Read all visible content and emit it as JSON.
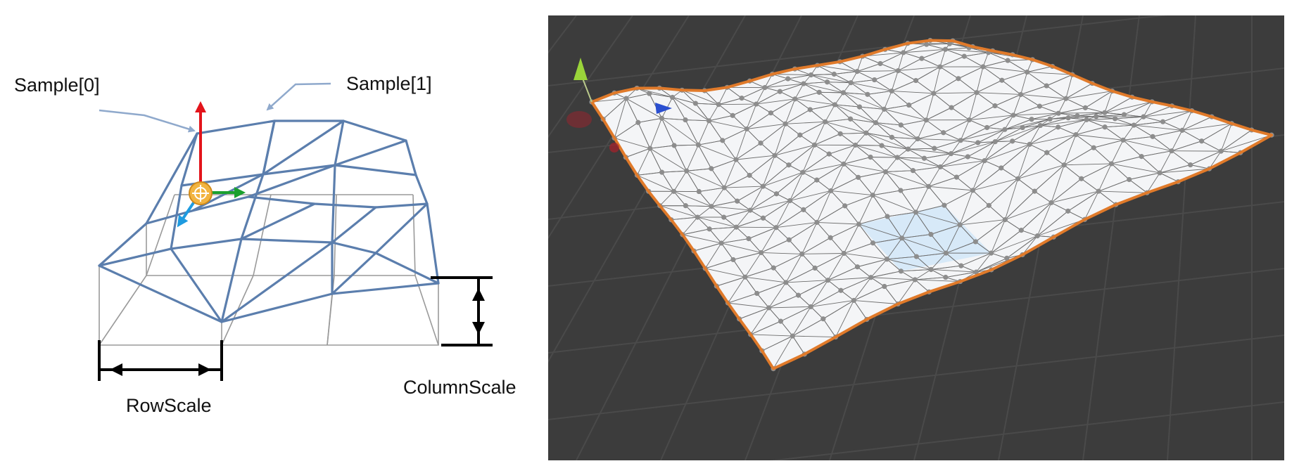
{
  "diagram": {
    "labels": {
      "sample0": "Sample[0]",
      "sample1": "Sample[1]",
      "row_scale": "RowScale",
      "column_scale": "ColumnScale"
    },
    "colors": {
      "wire": "#5b7ead",
      "base_grid": "#9a9a9a",
      "callout_arrow": "#8fa9cc",
      "axis_up": "#e3141b",
      "axis_right": "#1aa02e",
      "axis_forward": "#1e9be0",
      "pivot": "#f2b441",
      "dimension": "#000000"
    }
  },
  "scene_view": {
    "colors": {
      "background": "#3c3c3c",
      "floor_grid": "#4a4a4a",
      "mesh_fill": "#f4f5f7",
      "mesh_wire": "#6d6d6d",
      "vertex": "#8d8d8d",
      "outline": "#e07a2a",
      "gizmo_up": "#9ad43a",
      "gizmo_forward": "#2a4fd0",
      "gizmo_right": "#a8202a",
      "highlight": "#cfe6f7"
    }
  }
}
